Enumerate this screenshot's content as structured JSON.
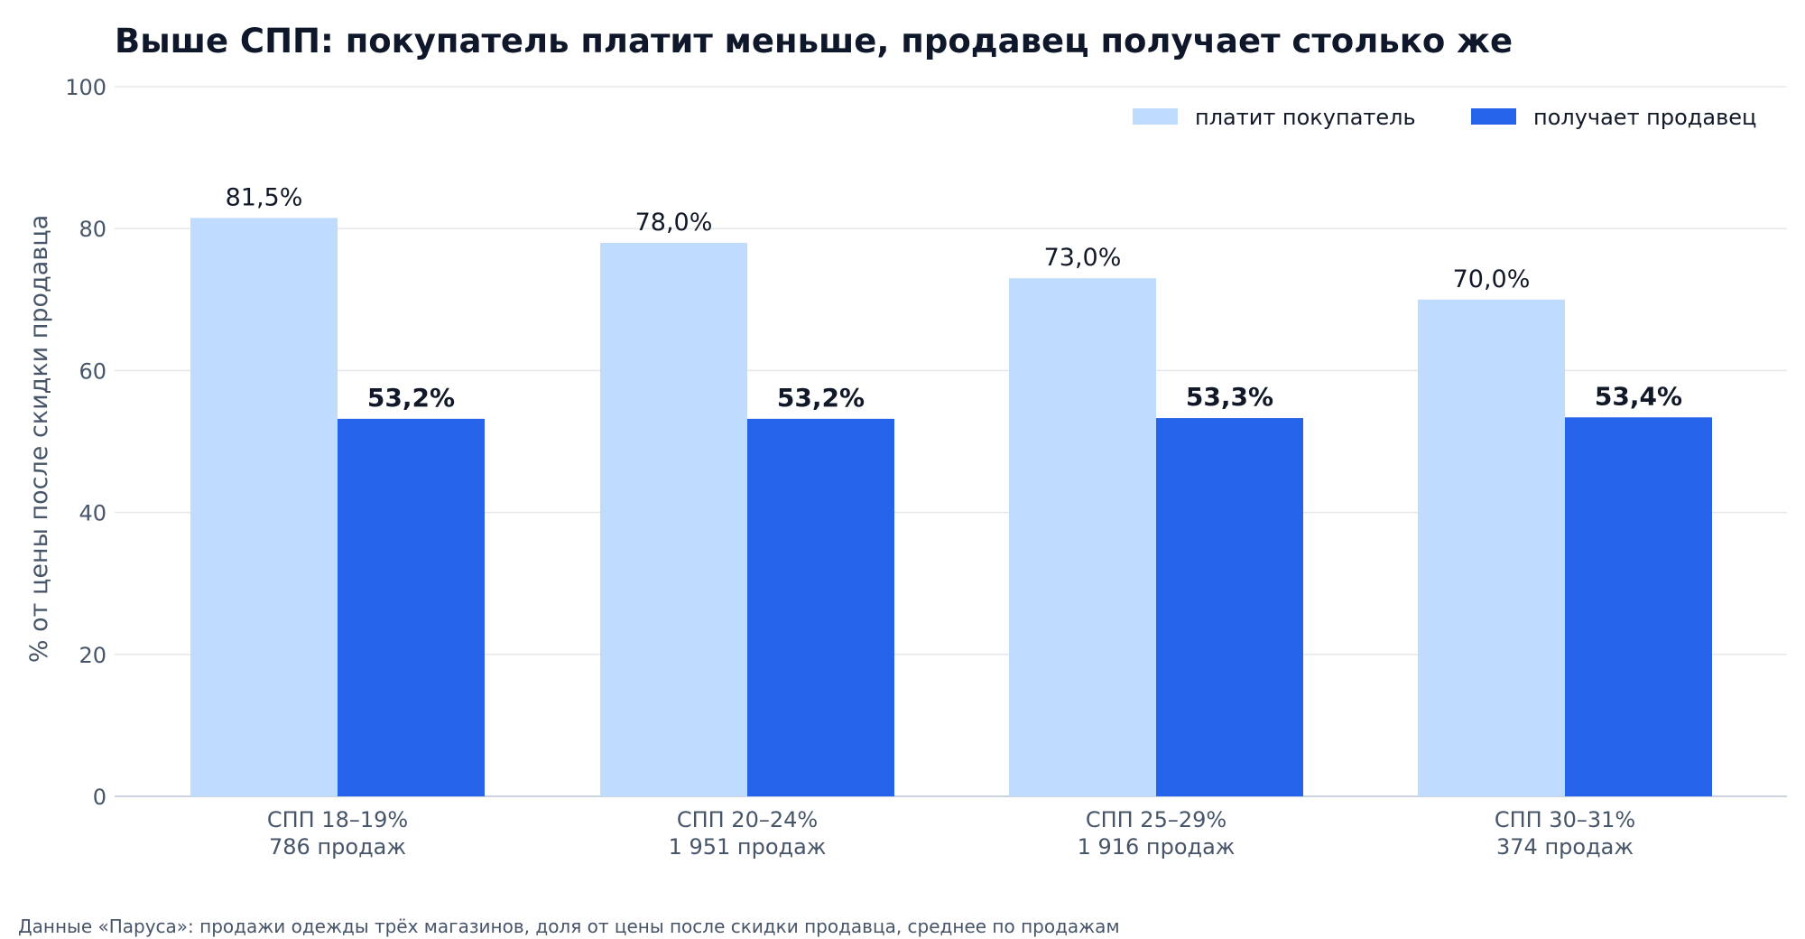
{
  "footer": {
    "source": "Данные «Паруса»: продажи одежды трёх магазинов, доля от цены после скидки продавца, среднее по продажам"
  },
  "chart_data": {
    "type": "bar",
    "title": "Выше СПП: покупатель платит меньше, продавец получает столько же",
    "xlabel": "",
    "ylabel": "% от цены после скидки продавца",
    "ylim": [
      0,
      100
    ],
    "yticks": [
      0,
      20,
      40,
      60,
      80,
      100
    ],
    "grid": true,
    "legend_position": "top-right",
    "categories": [
      {
        "label": "СПП 18–19%",
        "sublabel": "786 продаж"
      },
      {
        "label": "СПП 20–24%",
        "sublabel": "1 951 продаж"
      },
      {
        "label": "СПП 25–29%",
        "sublabel": "1 916 продаж"
      },
      {
        "label": "СПП 30–31%",
        "sublabel": "374 продаж"
      }
    ],
    "series": [
      {
        "name": "платит покупатель",
        "color": "#bfdbfe",
        "values": [
          81.5,
          78.0,
          73.0,
          70.0
        ],
        "labels": [
          "81,5%",
          "78,0%",
          "73,0%",
          "70,0%"
        ]
      },
      {
        "name": "получает продавец",
        "color": "#2563eb",
        "values": [
          53.2,
          53.2,
          53.3,
          53.4
        ],
        "labels": [
          "53,2%",
          "53,2%",
          "53,3%",
          "53,4%"
        ]
      }
    ]
  }
}
